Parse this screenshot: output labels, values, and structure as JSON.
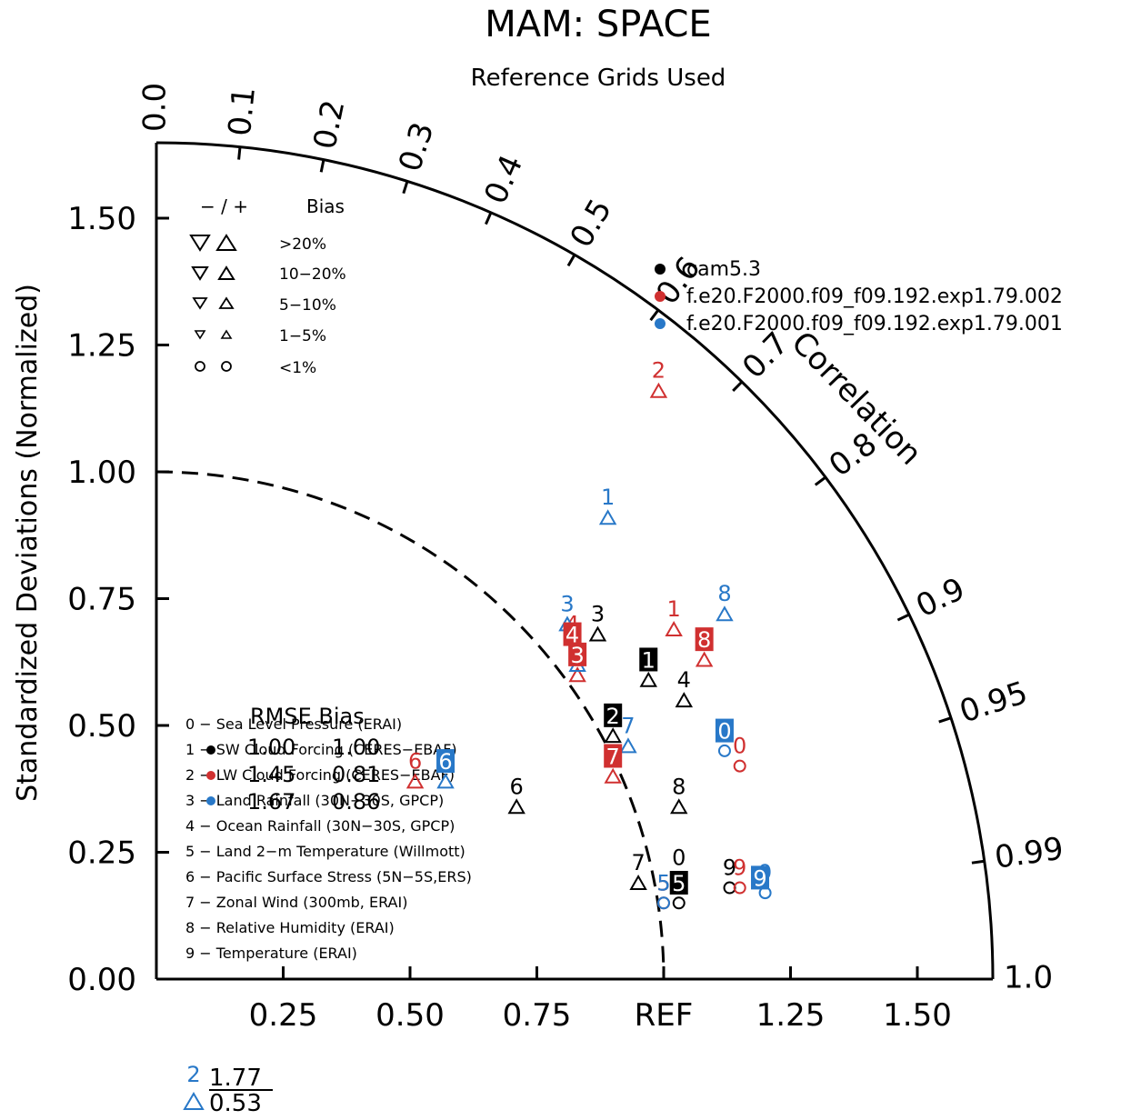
{
  "title": "MAM: SPACE",
  "subtitle": "Reference Grids Used",
  "ylabel": "Standardized Deviations (Normalized)",
  "correlation_label": "Correlation",
  "colors": {
    "black": "#000000",
    "red": "#d03030",
    "blue": "#2878c8"
  },
  "bias_legend": {
    "header_signs": "− / +",
    "header_bias": "Bias",
    "rows": [
      ">20%",
      "10−20%",
      "5−10%",
      "1−5%",
      "<1%"
    ]
  },
  "models": [
    {
      "name": "cam5.3",
      "color": "#000000"
    },
    {
      "name": "f.e20.F2000.f09_f09.192.exp1.79.002",
      "color": "#d03030"
    },
    {
      "name": "f.e20.F2000.f09_f09.192.exp1.79.001",
      "color": "#2878c8"
    }
  ],
  "rmse": {
    "header": "RMSE Bias",
    "rows": [
      {
        "rmse": "1.00",
        "bias": "1.00"
      },
      {
        "rmse": "1.45",
        "bias": "0.81"
      },
      {
        "rmse": "1.67",
        "bias": "0.86"
      }
    ]
  },
  "variables": [
    "0 − Sea Level Pressure (ERAI)",
    "1 − SW Cloud Forcing (CERES−EBAF)",
    "2 − LW Cloud Forcing (CERES−EBAF)",
    "3 − Land Rainfall (30N−30S, GPCP)",
    "4 − Ocean Rainfall (30N−30S, GPCP)",
    "5 − Land 2−m Temperature (Willmott)",
    "6 − Pacific Surface Stress (5N−5S,ERS)",
    "7 − Zonal Wind (300mb, ERAI)",
    "8 − Relative Humidity (ERAI)",
    "9 − Temperature (ERAI)"
  ],
  "outlier": {
    "label": "2",
    "rmse": "1.77",
    "bias": "0.53"
  },
  "chart_data": {
    "type": "scatter",
    "title": "MAM: SPACE",
    "subtitle": "Reference Grids Used",
    "coordinate_system": "taylor-polar",
    "ylabel": "Standardized Deviations (Normalized)",
    "angular_label": "Correlation",
    "std_range": [
      0,
      1.65
    ],
    "std_ticks": [
      "0.00",
      "0.25",
      "0.50",
      "0.75",
      "1.00",
      "1.25",
      "1.50"
    ],
    "x_ticks": [
      "0.25",
      "0.50",
      "0.75",
      "REF",
      "1.25",
      "1.50"
    ],
    "x_tick_values": [
      0.25,
      0.5,
      0.75,
      1.0,
      1.25,
      1.5
    ],
    "corr_ticks": [
      "0.0",
      "0.1",
      "0.2",
      "0.3",
      "0.4",
      "0.5",
      "0.6",
      "0.7",
      "0.8",
      "0.9",
      "0.95",
      "0.99",
      "1.0"
    ],
    "reference_std": 1.0,
    "series": [
      {
        "name": "cam5.3",
        "color": "#000000",
        "points": [
          {
            "label": "0",
            "x": 1.03,
            "y": 0.2,
            "marker": "circle"
          },
          {
            "label": "1",
            "x": 0.97,
            "y": 0.59,
            "marker": "triangle-up"
          },
          {
            "label": "2",
            "x": 0.9,
            "y": 0.48,
            "marker": "triangle-up"
          },
          {
            "label": "3",
            "x": 0.87,
            "y": 0.68,
            "marker": "triangle-up"
          },
          {
            "label": "4",
            "x": 1.04,
            "y": 0.55,
            "marker": "triangle-up"
          },
          {
            "label": "5",
            "x": 1.03,
            "y": 0.15,
            "marker": "circle"
          },
          {
            "label": "6",
            "x": 0.71,
            "y": 0.34,
            "marker": "triangle-up"
          },
          {
            "label": "7",
            "x": 0.95,
            "y": 0.19,
            "marker": "triangle-up"
          },
          {
            "label": "8",
            "x": 1.03,
            "y": 0.34,
            "marker": "triangle-up"
          },
          {
            "label": "9",
            "x": 1.13,
            "y": 0.18,
            "marker": "circle"
          }
        ]
      },
      {
        "name": "f.e20.F2000.f09_f09.192.exp1.79.002",
        "color": "#d03030",
        "points": [
          {
            "label": "0",
            "x": 1.15,
            "y": 0.42,
            "marker": "circle"
          },
          {
            "label": "1",
            "x": 1.02,
            "y": 0.69,
            "marker": "triangle-up"
          },
          {
            "label": "2",
            "x": 0.99,
            "y": 1.16,
            "marker": "triangle-up"
          },
          {
            "label": "3",
            "x": 0.83,
            "y": 0.6,
            "marker": "triangle-up"
          },
          {
            "label": "4",
            "x": 0.82,
            "y": 0.66,
            "marker": "triangle-down"
          },
          {
            "label": "5",
            "x": 1.0,
            "y": 0.15,
            "marker": "circle"
          },
          {
            "label": "6",
            "x": 0.51,
            "y": 0.39,
            "marker": "triangle-up"
          },
          {
            "label": "7",
            "x": 0.9,
            "y": 0.4,
            "marker": "triangle-up"
          },
          {
            "label": "8",
            "x": 1.08,
            "y": 0.63,
            "marker": "triangle-up"
          },
          {
            "label": "9",
            "x": 1.15,
            "y": 0.18,
            "marker": "circle"
          }
        ]
      },
      {
        "name": "f.e20.F2000.f09_f09.192.exp1.79.001",
        "color": "#2878c8",
        "points": [
          {
            "label": "0",
            "x": 1.12,
            "y": 0.45,
            "marker": "circle"
          },
          {
            "label": "1",
            "x": 0.89,
            "y": 0.91,
            "marker": "triangle-up"
          },
          {
            "label": "2",
            "x": 0.07,
            "y": -0.24,
            "marker": "triangle-up",
            "outlier": true
          },
          {
            "label": "3",
            "x": 0.81,
            "y": 0.7,
            "marker": "triangle-up"
          },
          {
            "label": "4",
            "x": 0.83,
            "y": 0.62,
            "marker": "triangle-up"
          },
          {
            "label": "5",
            "x": 1.0,
            "y": 0.15,
            "marker": "circle"
          },
          {
            "label": "6",
            "x": 0.57,
            "y": 0.39,
            "marker": "triangle-up"
          },
          {
            "label": "7",
            "x": 0.93,
            "y": 0.46,
            "marker": "triangle-up"
          },
          {
            "label": "8",
            "x": 1.12,
            "y": 0.72,
            "marker": "triangle-up"
          },
          {
            "label": "9",
            "x": 1.2,
            "y": 0.17,
            "marker": "circle"
          }
        ]
      }
    ],
    "boxed_labels": [
      {
        "label": "0",
        "x": 1.12,
        "y": 0.49,
        "color": "#2878c8"
      },
      {
        "label": "1",
        "x": 0.97,
        "y": 0.63,
        "color": "#000000"
      },
      {
        "label": "2",
        "x": 0.9,
        "y": 0.52,
        "color": "#000000"
      },
      {
        "label": "3",
        "x": 0.83,
        "y": 0.64,
        "color": "#d03030"
      },
      {
        "label": "4",
        "x": 0.82,
        "y": 0.68,
        "color": "#d03030"
      },
      {
        "label": "5",
        "x": 1.03,
        "y": 0.19,
        "color": "#000000"
      },
      {
        "label": "6",
        "x": 0.57,
        "y": 0.43,
        "color": "#2878c8"
      },
      {
        "label": "7",
        "x": 0.9,
        "y": 0.44,
        "color": "#d03030"
      },
      {
        "label": "8",
        "x": 1.08,
        "y": 0.67,
        "color": "#d03030"
      },
      {
        "label": "9",
        "x": 1.19,
        "y": 0.2,
        "color": "#2878c8"
      }
    ],
    "outlier": {
      "label": "2",
      "rmse": "1.77",
      "bias": "0.53",
      "color": "#2878c8"
    }
  }
}
